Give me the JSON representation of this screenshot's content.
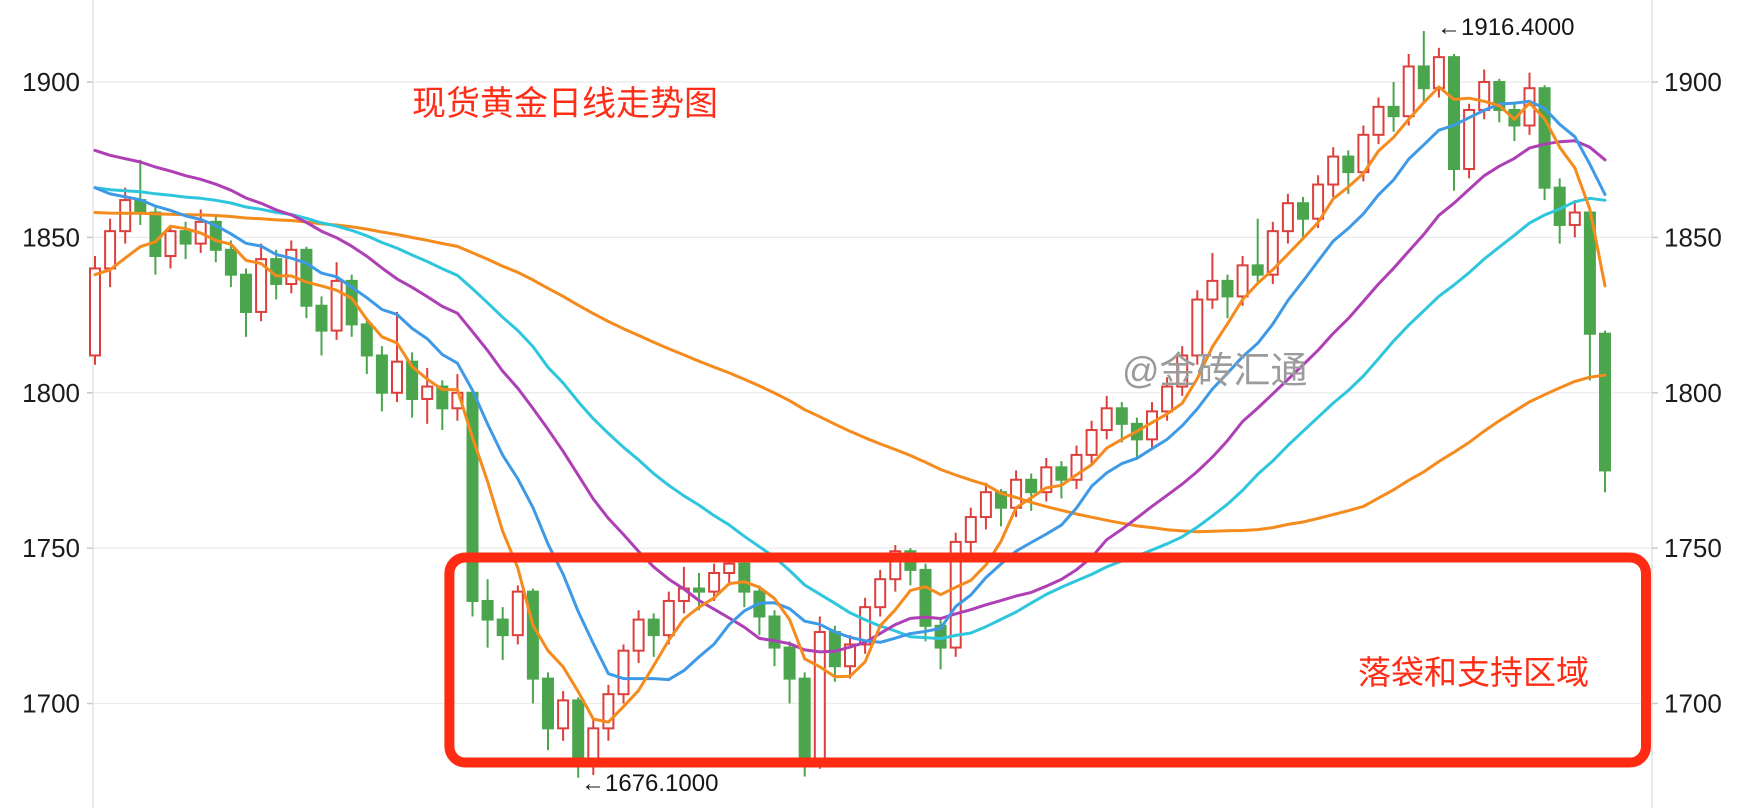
{
  "chart_data": {
    "type": "candlestick",
    "title": "现货黄金日线走势图",
    "watermark": "@金砖汇通",
    "y_axis": {
      "ticks": [
        1900,
        1850,
        1800,
        1750,
        1700
      ],
      "range_shown": [
        1668,
        1926
      ],
      "labels_both_sides": true,
      "grid": "horizontal-only"
    },
    "x_axis": {
      "labels": [],
      "note": "no date labels visible"
    },
    "annotations": [
      {
        "text": "←1916.4000",
        "candle_index": 88,
        "anchor": "high"
      },
      {
        "text": "←1676.1000",
        "candle_index": 32,
        "anchor": "low"
      }
    ],
    "support_box": {
      "label": "落袋和支持区域",
      "price_top": 1747,
      "price_bottom": 1681,
      "start_index": 24,
      "extends_to": "right-edge",
      "color": "#ff2b12"
    },
    "colors": {
      "up_candle": "#dc3f3c",
      "up_fill": "#ffffff",
      "down_candle": "#4aa54d",
      "grid": "#ebebeb",
      "axis_line": "#e3e3e3",
      "tick_text": "#1b1b1b",
      "annotation_text": "#151515",
      "title_text": "#ff2d16",
      "watermark_text": "#9b9b9b"
    },
    "moving_averages": [
      {
        "window": 60,
        "color": "#f58a1d",
        "start_value": 1858
      },
      {
        "window": 30,
        "color": "#2ec6dc",
        "start_value": 1866
      },
      {
        "window": 20,
        "color": "#af3fb5",
        "start_value": 1878
      },
      {
        "window": 10,
        "color": "#3e9ae6",
        "start_value": 1866
      },
      {
        "window": 5,
        "color": "#f58a1d",
        "start_value": 1838
      }
    ],
    "candles": [
      [
        1812,
        1844,
        1809,
        1840
      ],
      [
        1840,
        1856,
        1834,
        1852
      ],
      [
        1852,
        1866,
        1848,
        1862
      ],
      [
        1862,
        1875,
        1854,
        1858
      ],
      [
        1858,
        1860,
        1838,
        1844
      ],
      [
        1844,
        1854,
        1840,
        1852
      ],
      [
        1852,
        1855,
        1843,
        1848
      ],
      [
        1848,
        1859,
        1845,
        1855
      ],
      [
        1855,
        1857,
        1842,
        1846
      ],
      [
        1846,
        1849,
        1834,
        1838
      ],
      [
        1838,
        1840,
        1818,
        1826
      ],
      [
        1826,
        1848,
        1823,
        1843
      ],
      [
        1843,
        1846,
        1830,
        1835
      ],
      [
        1835,
        1849,
        1832,
        1846
      ],
      [
        1846,
        1847,
        1824,
        1828
      ],
      [
        1828,
        1831,
        1812,
        1820
      ],
      [
        1820,
        1842,
        1817,
        1836
      ],
      [
        1836,
        1838,
        1818,
        1822
      ],
      [
        1822,
        1824,
        1806,
        1812
      ],
      [
        1812,
        1815,
        1794,
        1800
      ],
      [
        1800,
        1826,
        1797,
        1810
      ],
      [
        1810,
        1813,
        1792,
        1798
      ],
      [
        1798,
        1808,
        1790,
        1802
      ],
      [
        1802,
        1804,
        1788,
        1795
      ],
      [
        1795,
        1806,
        1791,
        1800
      ],
      [
        1800,
        1801,
        1728,
        1733
      ],
      [
        1733,
        1740,
        1718,
        1727
      ],
      [
        1727,
        1731,
        1714,
        1722
      ],
      [
        1722,
        1738,
        1719,
        1736
      ],
      [
        1736,
        1737,
        1700,
        1708
      ],
      [
        1708,
        1710,
        1685,
        1692
      ],
      [
        1692,
        1704,
        1688,
        1701
      ],
      [
        1701,
        1702,
        1676.1,
        1682
      ],
      [
        1682,
        1695,
        1677,
        1692
      ],
      [
        1692,
        1706,
        1688,
        1703
      ],
      [
        1703,
        1719,
        1700,
        1717
      ],
      [
        1717,
        1730,
        1713,
        1727
      ],
      [
        1727,
        1729,
        1715,
        1722
      ],
      [
        1722,
        1736,
        1719,
        1733
      ],
      [
        1733,
        1744,
        1729,
        1737
      ],
      [
        1737,
        1742,
        1730,
        1736
      ],
      [
        1736,
        1745,
        1733,
        1742
      ],
      [
        1742,
        1748,
        1738,
        1745
      ],
      [
        1745,
        1747,
        1731,
        1736
      ],
      [
        1736,
        1738,
        1722,
        1728
      ],
      [
        1728,
        1730,
        1712,
        1718
      ],
      [
        1718,
        1720,
        1700,
        1708
      ],
      [
        1708,
        1710,
        1676.5,
        1682
      ],
      [
        1682,
        1728,
        1679,
        1723
      ],
      [
        1723,
        1725,
        1707,
        1712
      ],
      [
        1712,
        1722,
        1708,
        1719
      ],
      [
        1719,
        1734,
        1716,
        1731
      ],
      [
        1731,
        1743,
        1728,
        1740
      ],
      [
        1740,
        1751,
        1736,
        1749
      ],
      [
        1749,
        1750,
        1738,
        1743
      ],
      [
        1743,
        1745,
        1720,
        1725
      ],
      [
        1725,
        1727,
        1711,
        1718
      ],
      [
        1718,
        1755,
        1715,
        1752
      ],
      [
        1752,
        1763,
        1748,
        1760
      ],
      [
        1760,
        1771,
        1756,
        1768
      ],
      [
        1768,
        1769,
        1757,
        1763
      ],
      [
        1763,
        1775,
        1760,
        1772
      ],
      [
        1772,
        1774,
        1762,
        1768
      ],
      [
        1768,
        1779,
        1765,
        1776
      ],
      [
        1776,
        1778,
        1766,
        1772
      ],
      [
        1772,
        1783,
        1769,
        1780
      ],
      [
        1780,
        1791,
        1777,
        1788
      ],
      [
        1788,
        1799,
        1785,
        1795
      ],
      [
        1795,
        1797,
        1784,
        1790
      ],
      [
        1790,
        1792,
        1779,
        1785
      ],
      [
        1785,
        1797,
        1782,
        1794
      ],
      [
        1794,
        1805,
        1791,
        1802
      ],
      [
        1802,
        1815,
        1799,
        1812
      ],
      [
        1812,
        1833,
        1809,
        1830
      ],
      [
        1830,
        1845,
        1827,
        1836
      ],
      [
        1836,
        1838,
        1824,
        1831
      ],
      [
        1831,
        1844,
        1828,
        1841
      ],
      [
        1841,
        1856,
        1835,
        1838
      ],
      [
        1838,
        1855,
        1835,
        1852
      ],
      [
        1852,
        1864,
        1848,
        1861
      ],
      [
        1861,
        1863,
        1850,
        1856
      ],
      [
        1856,
        1870,
        1853,
        1867
      ],
      [
        1867,
        1879,
        1863,
        1876
      ],
      [
        1876,
        1878,
        1864,
        1871
      ],
      [
        1871,
        1886,
        1868,
        1883
      ],
      [
        1883,
        1895,
        1880,
        1892
      ],
      [
        1892,
        1900,
        1884,
        1889
      ],
      [
        1889,
        1909,
        1886,
        1905
      ],
      [
        1905,
        1916.4,
        1893,
        1898
      ],
      [
        1898,
        1911,
        1895,
        1908
      ],
      [
        1908,
        1909,
        1865,
        1872
      ],
      [
        1872,
        1893,
        1869,
        1891
      ],
      [
        1891,
        1904,
        1888,
        1900
      ],
      [
        1900,
        1901,
        1887,
        1891
      ],
      [
        1891,
        1893,
        1881,
        1886
      ],
      [
        1886,
        1903,
        1883,
        1898
      ],
      [
        1898,
        1899,
        1862,
        1866
      ],
      [
        1866,
        1869,
        1848,
        1854
      ],
      [
        1854,
        1862,
        1850,
        1858
      ],
      [
        1858,
        1859,
        1804,
        1819
      ],
      [
        1819,
        1820,
        1768,
        1775
      ]
    ]
  }
}
